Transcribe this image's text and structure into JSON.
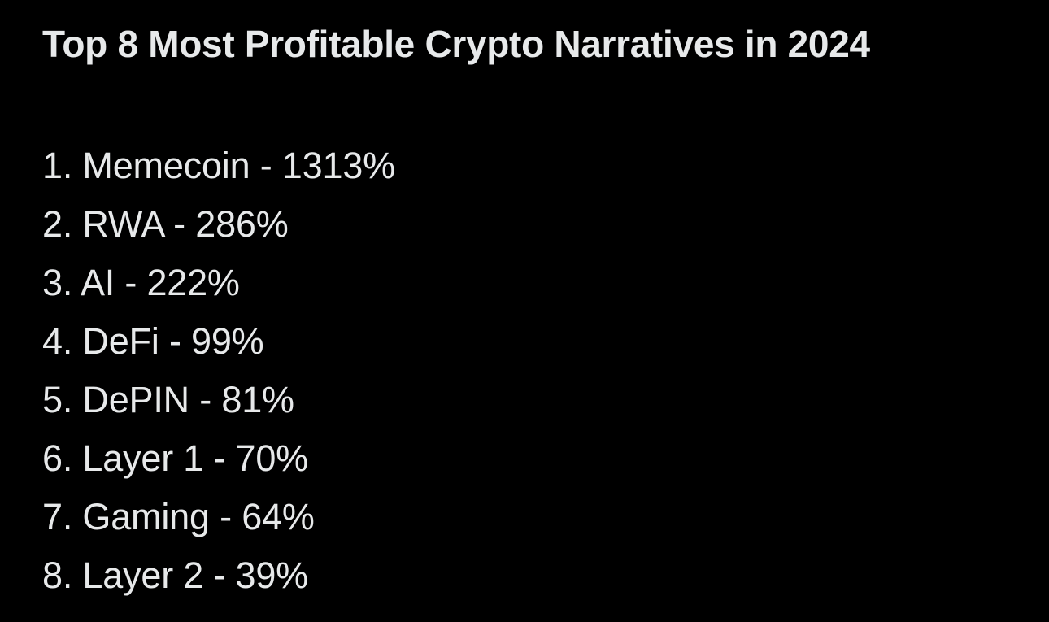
{
  "post": {
    "title": "Top 8 Most Profitable Crypto Narratives in 2024",
    "text_color": "#e7e9ea",
    "background_color": "#000000",
    "items": [
      {
        "label": "1. Memecoin - 1313%"
      },
      {
        "label": "2. RWA - 286%"
      },
      {
        "label": "3. AI - 222%"
      },
      {
        "label": "4. DeFi - 99%"
      },
      {
        "label": "5. DePIN - 81%"
      },
      {
        "label": "6. Layer 1 - 70%"
      },
      {
        "label": "7. Gaming - 64%"
      },
      {
        "label": "8. Layer 2 - 39%"
      }
    ]
  }
}
